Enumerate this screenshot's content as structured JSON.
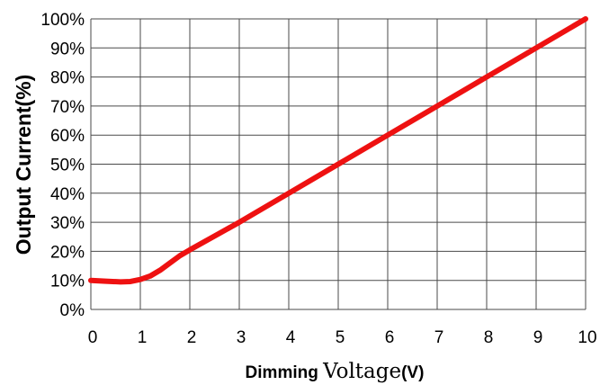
{
  "chart_data": {
    "type": "line",
    "xlabel_parts": [
      "Dimming ",
      "Voltage",
      "(V)"
    ],
    "ylabel": "Output Current(%)",
    "xlim": [
      0,
      10
    ],
    "ylim": [
      0,
      100
    ],
    "x_ticks": [
      "0",
      "1",
      "2",
      "3",
      "4",
      "5",
      "6",
      "7",
      "8",
      "9",
      "10"
    ],
    "y_ticks": [
      "0%",
      "10%",
      "20%",
      "30%",
      "40%",
      "50%",
      "60%",
      "70%",
      "80%",
      "90%",
      "100%"
    ],
    "grid": true,
    "line_color": "#ee1111",
    "series": [
      {
        "x": [
          0,
          0.3,
          0.6,
          0.8,
          1.0,
          1.2,
          1.4,
          1.6,
          1.8,
          2.0,
          3,
          4,
          5,
          6,
          7,
          8,
          9,
          10
        ],
        "y": [
          10,
          9.7,
          9.5,
          9.6,
          10.3,
          11.5,
          13.5,
          16,
          18.5,
          20.5,
          30,
          40,
          50,
          60,
          70,
          80,
          90,
          100
        ]
      }
    ]
  }
}
